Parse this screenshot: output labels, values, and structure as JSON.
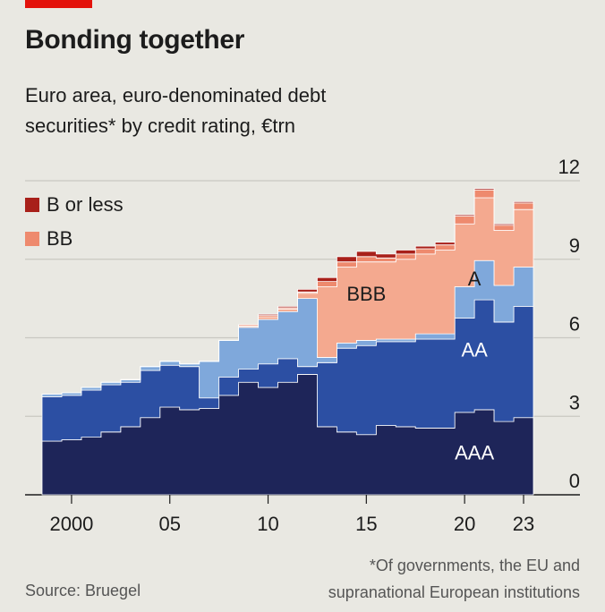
{
  "header": {
    "title": "Bonding together",
    "subtitle_line1": "Euro area, euro-denominated debt",
    "subtitle_line2": "securities* by credit rating, €trn"
  },
  "legend": [
    {
      "label": "B or less",
      "color": "#a8201a"
    },
    {
      "label": "BB",
      "color": "#ee8a6e"
    }
  ],
  "footer": {
    "source": "Source: Bruegel",
    "footnote_line1": "*Of governments, the EU and",
    "footnote_line2": "supranational European institutions"
  },
  "colors": {
    "AAA": "#1e2559",
    "AA": "#2c4fa3",
    "A": "#7fa8db",
    "BBB": "#f4a98f",
    "BB": "#ee8a6e",
    "B or less": "#a8201a",
    "background": "#e9e8e2"
  },
  "chart_data": {
    "type": "area",
    "stacked": true,
    "step": true,
    "x": [
      1999,
      2000,
      2001,
      2002,
      2003,
      2004,
      2005,
      2006,
      2007,
      2008,
      2009,
      2010,
      2011,
      2012,
      2013,
      2014,
      2015,
      2016,
      2017,
      2018,
      2019,
      2020,
      2021,
      2022,
      2023
    ],
    "x_tick_labels": [
      "2000",
      "05",
      "10",
      "15",
      "20",
      "23"
    ],
    "x_tick_values": [
      2000,
      2005,
      2010,
      2015,
      2020,
      2023
    ],
    "ylim": [
      0,
      12
    ],
    "y_ticks": [
      0,
      3,
      6,
      9,
      12
    ],
    "y_axis_position": "right",
    "grid": true,
    "legend_position": "top-left",
    "series": [
      {
        "name": "AAA",
        "label_on_chart": true,
        "values": [
          2.05,
          2.1,
          2.2,
          2.4,
          2.6,
          2.95,
          3.35,
          3.25,
          3.3,
          3.8,
          4.3,
          4.1,
          4.3,
          4.6,
          2.6,
          2.4,
          2.3,
          2.65,
          2.6,
          2.55,
          2.55,
          3.15,
          3.25,
          2.8,
          2.95
        ]
      },
      {
        "name": "AA",
        "label_on_chart": true,
        "values": [
          1.7,
          1.7,
          1.8,
          1.8,
          1.7,
          1.8,
          1.6,
          1.65,
          0.4,
          0.7,
          0.5,
          0.9,
          0.9,
          0.3,
          2.45,
          3.2,
          3.4,
          3.2,
          3.25,
          3.4,
          3.4,
          3.6,
          4.2,
          3.8,
          4.25
        ]
      },
      {
        "name": "A",
        "label_on_chart": true,
        "values": [
          0.1,
          0.1,
          0.1,
          0.1,
          0.1,
          0.15,
          0.15,
          0.1,
          1.4,
          1.4,
          1.6,
          1.7,
          1.8,
          2.6,
          0.2,
          0.2,
          0.2,
          0.1,
          0.1,
          0.2,
          0.2,
          1.2,
          1.5,
          1.4,
          1.5
        ]
      },
      {
        "name": "BBB",
        "label_on_chart": true,
        "values": [
          0,
          0,
          0,
          0,
          0,
          0,
          0,
          0,
          0,
          0,
          0.05,
          0.1,
          0.1,
          0.2,
          2.7,
          2.9,
          3.0,
          2.95,
          3.05,
          3.05,
          3.2,
          2.4,
          2.4,
          2.1,
          2.2
        ]
      },
      {
        "name": "BB",
        "values": [
          0,
          0,
          0,
          0,
          0,
          0,
          0,
          0,
          0,
          0,
          0.05,
          0.05,
          0.05,
          0.05,
          0.2,
          0.2,
          0.2,
          0.15,
          0.2,
          0.2,
          0.2,
          0.3,
          0.3,
          0.2,
          0.25
        ]
      },
      {
        "name": "B or less",
        "values": [
          0,
          0,
          0,
          0,
          0,
          0,
          0,
          0,
          0,
          0,
          0,
          0.05,
          0.05,
          0.1,
          0.15,
          0.2,
          0.2,
          0.15,
          0.15,
          0.1,
          0.1,
          0.05,
          0.05,
          0.05,
          0.05
        ]
      }
    ]
  }
}
